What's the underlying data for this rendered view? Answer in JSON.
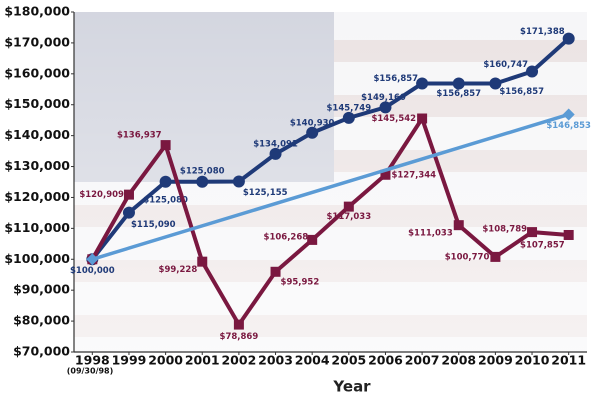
{
  "chart_data": {
    "type": "line",
    "x_label": "Year",
    "x_note": "(09/30/98)",
    "x": [
      1998,
      1999,
      2000,
      2001,
      2002,
      2003,
      2004,
      2005,
      2006,
      2007,
      2008,
      2009,
      2010,
      2011
    ],
    "xticks": [
      1998,
      1999,
      2000,
      2001,
      2002,
      2003,
      2004,
      2005,
      2006,
      2007,
      2008,
      2009,
      2010,
      2011
    ],
    "xlim": [
      1997.5,
      2011.5
    ],
    "ylim": [
      70000,
      180000
    ],
    "yticks": [
      {
        "value": 70000,
        "label": "$70,000"
      },
      {
        "value": 80000,
        "label": "$80,000"
      },
      {
        "value": 90000,
        "label": "$90,000"
      },
      {
        "value": 100000,
        "label": "$100,000"
      },
      {
        "value": 110000,
        "label": "$110,000"
      },
      {
        "value": 120000,
        "label": "$120,000"
      },
      {
        "value": 130000,
        "label": "$130,000"
      },
      {
        "value": 140000,
        "label": "$140,000"
      },
      {
        "value": 150000,
        "label": "$150,000"
      },
      {
        "value": 160000,
        "label": "$160,000"
      },
      {
        "value": 170000,
        "label": "$170,000"
      },
      {
        "value": 180000,
        "label": "$180,000"
      }
    ],
    "grid": false,
    "series": [
      {
        "color": "#1f3a78",
        "marker": "circle",
        "values": [
          100000,
          115090,
          125080,
          125080,
          125155,
          134091,
          140930,
          145749,
          149160,
          156857,
          156857,
          156857,
          160747,
          171388
        ],
        "value_labels": [
          "$100,000",
          "$115,090",
          "$125,080",
          "$125,080",
          "$125,155",
          "$134,091",
          "$140,930",
          "$145,749",
          "$149,160",
          "$156,857",
          "$156,857",
          "$156,857",
          "$160,747",
          "$171,388"
        ]
      },
      {
        "color": "#7a1840",
        "marker": "square",
        "values": [
          100000,
          120909,
          136937,
          99228,
          78869,
          95952,
          106268,
          117033,
          127344,
          145542,
          111033,
          100770,
          108789,
          107857
        ],
        "value_labels": [
          null,
          "$120,909",
          "$136,937",
          "$99,228",
          "$78,869",
          "$95,952",
          "$106,268",
          "$117,033",
          "$127,344",
          "$145,542",
          "$111,033",
          "$100,770",
          "$108,789",
          "$107,857"
        ]
      },
      {
        "color": "#5b9bd5",
        "marker": "diamond",
        "x": [
          1998,
          2011
        ],
        "values": [
          100000,
          146853
        ],
        "value_labels": [
          null,
          "$146,853"
        ]
      }
    ]
  }
}
